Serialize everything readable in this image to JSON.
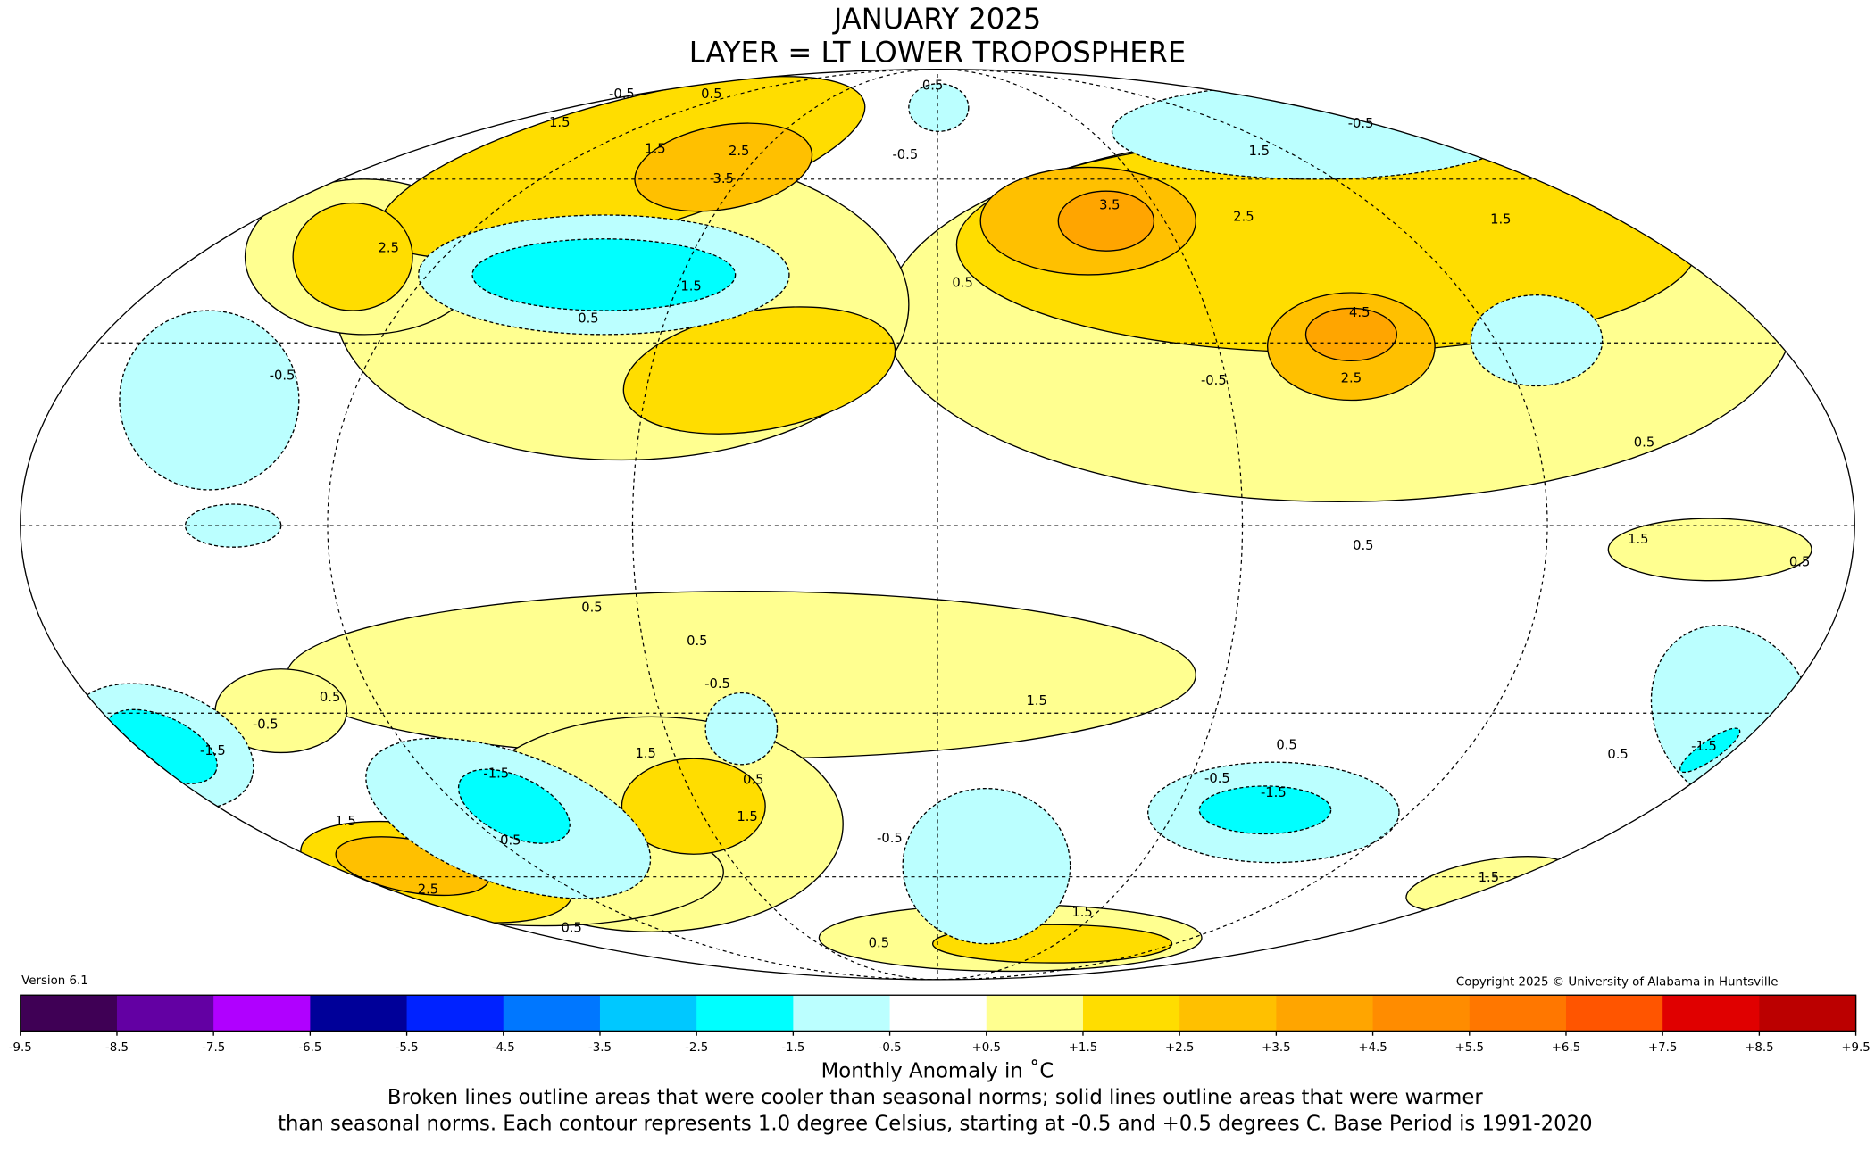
{
  "chart_data": {
    "type": "heatmap",
    "title": "JANUARY 2025",
    "subtitle": "LAYER = LT LOWER TROPOSPHERE",
    "projection": "Mollweide world map",
    "xlabel": "Monthly Anomaly in ˚C",
    "colorbar": {
      "ticks": [
        "-9.5",
        "-8.5",
        "-7.5",
        "-6.5",
        "-5.5",
        "-4.5",
        "-3.5",
        "-2.5",
        "-1.5",
        "-0.5",
        "+0.5",
        "+1.5",
        "+2.5",
        "+3.5",
        "+4.5",
        "+5.5",
        "+6.5",
        "+7.5",
        "+8.5",
        "+9.5"
      ],
      "colors": [
        "#3f0055",
        "#6300a3",
        "#b000ff",
        "#000099",
        "#0022ff",
        "#0077ff",
        "#00c8ff",
        "#00ffff",
        "#bbffff",
        "#ffffff",
        "#ffff90",
        "#ffdd00",
        "#ffc000",
        "#ffa500",
        "#ff8c00",
        "#ff7700",
        "#ff5500",
        "#e00000",
        "#bb0000"
      ],
      "range": [
        -9.5,
        9.5
      ]
    },
    "contour_labels": [
      "-0.5",
      "0.5",
      "1.5",
      "2.5",
      "3.5",
      "1.5",
      "0.5",
      "-0.5",
      "2.5",
      "1.5",
      "0.5",
      "-0.5",
      "1.5",
      "3.5",
      "2.5",
      "1.5",
      "4.5",
      "2.5",
      "-0.5",
      "0.5",
      "-0.5",
      "0.5",
      "0.5",
      "0.5",
      "0.5",
      "0.5",
      "-0.5",
      "-1.5",
      "-0.5",
      "1.5",
      "-1.5",
      "0.5",
      "1.5",
      "-0.5",
      "-0.5",
      "-1.5",
      "0.5",
      "0.5",
      "1.5",
      "-0.5",
      "1.5",
      "2.5",
      "0.5",
      "1.5",
      "1.5",
      "0.5",
      "1.5",
      "-1.5",
      "0.5"
    ]
  },
  "version": "Version 6.1",
  "copyright": "Copyright 2025 © University of Alabama in Huntsville",
  "caption_line1": "Broken lines outline areas that were cooler than seasonal norms; solid lines outline areas that were warmer",
  "caption_line2": "than seasonal norms. Each contour represents 1.0 degree Celsius, starting at -0.5 and +0.5 degrees C. Base Period is 1991-2020"
}
